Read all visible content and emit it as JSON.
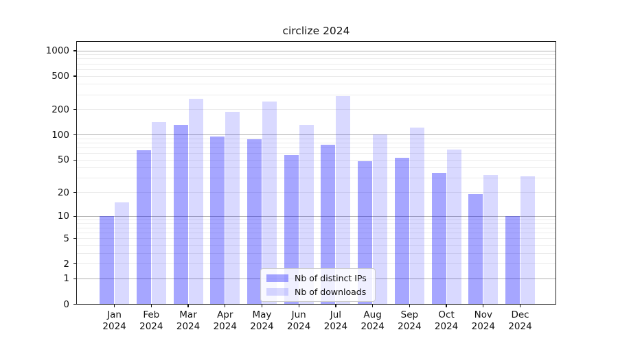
{
  "chart_data": {
    "type": "bar",
    "title": "circlize 2024",
    "categories": [
      "Jan 2024",
      "Feb 2024",
      "Mar 2024",
      "Apr 2024",
      "May 2024",
      "Jun 2024",
      "Jul 2024",
      "Aug 2024",
      "Sep 2024",
      "Oct 2024",
      "Nov 2024",
      "Dec 2024"
    ],
    "series": [
      {
        "name": "Nb of distinct IPs",
        "color": "#0000FF59",
        "values": [
          10,
          65,
          133,
          95,
          88,
          57,
          77,
          48,
          53,
          35,
          19,
          10
        ]
      },
      {
        "name": "Nb of downloads",
        "color": "#0000FF26",
        "values": [
          15,
          143,
          270,
          190,
          251,
          132,
          290,
          102,
          123,
          67,
          33,
          32
        ]
      }
    ],
    "xlabel": "",
    "ylabel": "",
    "yscale": "log10(value+1)",
    "ylim": [
      0,
      1300
    ],
    "yticks": [
      0,
      1,
      2,
      5,
      10,
      20,
      50,
      100,
      200,
      500,
      1000
    ],
    "grid": {
      "major_lines": [
        1,
        10,
        100,
        1000
      ],
      "minor_lines": "2-9 per decade",
      "major_color": "#b0b0b0",
      "minor_color": "#ebebeb"
    },
    "legend_position": "inside-bottom-center",
    "colors": {
      "bar_distinct_ips": "#0000FF59",
      "bar_downloads": "#0000FF26",
      "spine": "#1a1a1a",
      "text": "#111111",
      "background": "#ffffff"
    }
  }
}
